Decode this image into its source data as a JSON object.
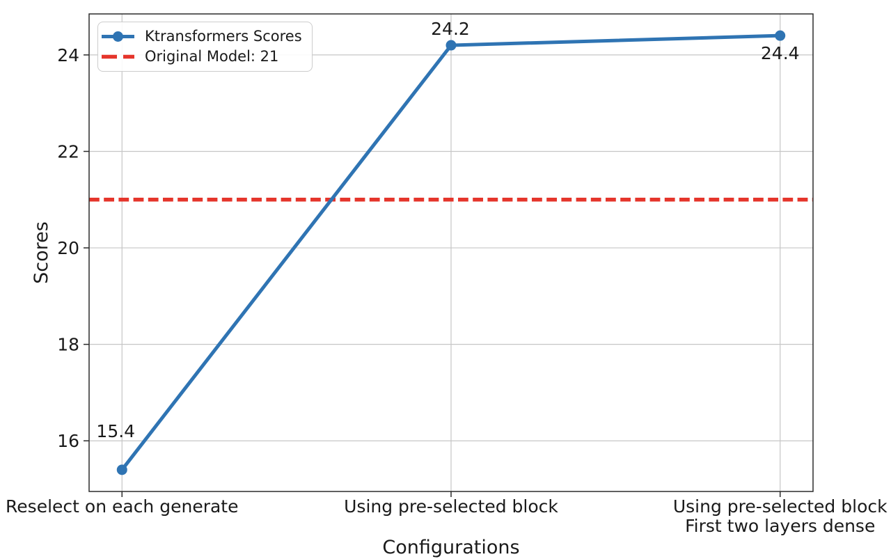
{
  "chart_data": {
    "type": "line",
    "title": "",
    "xlabel": "Configurations",
    "ylabel": "Scores",
    "categories": [
      "Reselect on each generate",
      "Using pre-selected block",
      "Using pre-selected block\nFirst two layers dense"
    ],
    "series": [
      {
        "name": "Ktransformers Scores",
        "values": [
          15.4,
          24.2,
          24.4
        ],
        "color": "#2f74b3",
        "style": "solid",
        "marker": "circle"
      }
    ],
    "point_labels": [
      "15.4",
      "24.2",
      "24.4"
    ],
    "reference_line": {
      "label": "Original Model: 21",
      "value": 21,
      "color": "#e5352b",
      "style": "dashed"
    },
    "yticks": [
      16,
      18,
      20,
      22,
      24
    ],
    "ylim": [
      14.95,
      24.85
    ],
    "grid": true,
    "grid_color": "#c6c6c6",
    "spine_color": "#2b2b2b",
    "legend_position": "upper left"
  }
}
